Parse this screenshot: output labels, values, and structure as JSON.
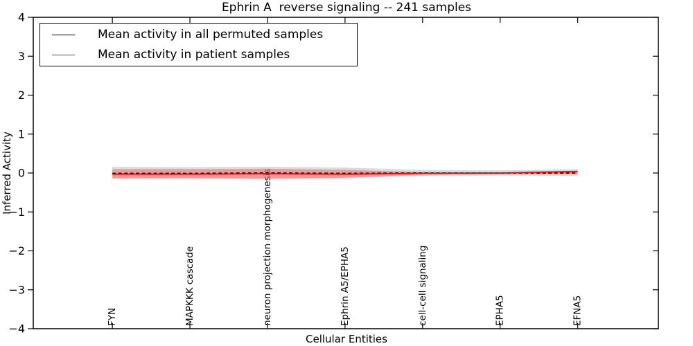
{
  "chart_data": {
    "type": "line",
    "title": "Ephrin A  reverse signaling -- 241 samples",
    "xlabel": "Cellular Entities",
    "ylabel": "Inferred Activity",
    "categories": [
      "FYN",
      "MAPKKK cascade",
      "neuron projection morphogenesis",
      "Ephrin A5/EPHA5",
      "cell-cell signaling",
      "EPHA5",
      "EFNA5"
    ],
    "ylim": [
      -4,
      4
    ],
    "xlim": [
      -1.02,
      7.04
    ],
    "yticks": [
      -4,
      -3,
      -2,
      -1,
      0,
      1,
      2,
      3,
      4
    ],
    "grid": false,
    "legend_position": "upper left",
    "series": [
      {
        "name": "Mean activity in all permuted samples",
        "color": "#000000",
        "style": "dashed",
        "values": [
          -0.01,
          -0.01,
          0.0,
          -0.01,
          0.0,
          0.0,
          0.0
        ],
        "band_upper": [
          0.16,
          0.15,
          0.16,
          0.14,
          0.08,
          0.07,
          0.1
        ],
        "band_lower": [
          -0.14,
          -0.14,
          -0.15,
          -0.13,
          -0.07,
          -0.06,
          -0.08
        ],
        "band_color": "#999999",
        "band_opacity": 0.35
      },
      {
        "name": "Mean activity in patient samples",
        "color": "#ff0000",
        "style": "solid",
        "values": [
          -0.03,
          -0.03,
          -0.02,
          -0.03,
          -0.01,
          0.0,
          0.04
        ],
        "band_upper": [
          0.1,
          0.1,
          0.11,
          0.08,
          0.02,
          0.01,
          0.06
        ],
        "band_lower": [
          -0.14,
          -0.13,
          -0.15,
          -0.12,
          -0.04,
          -0.03,
          -0.03
        ],
        "band_color": "#ff4d4d",
        "band_opacity": 0.45
      }
    ],
    "axis_color": "#000000"
  }
}
